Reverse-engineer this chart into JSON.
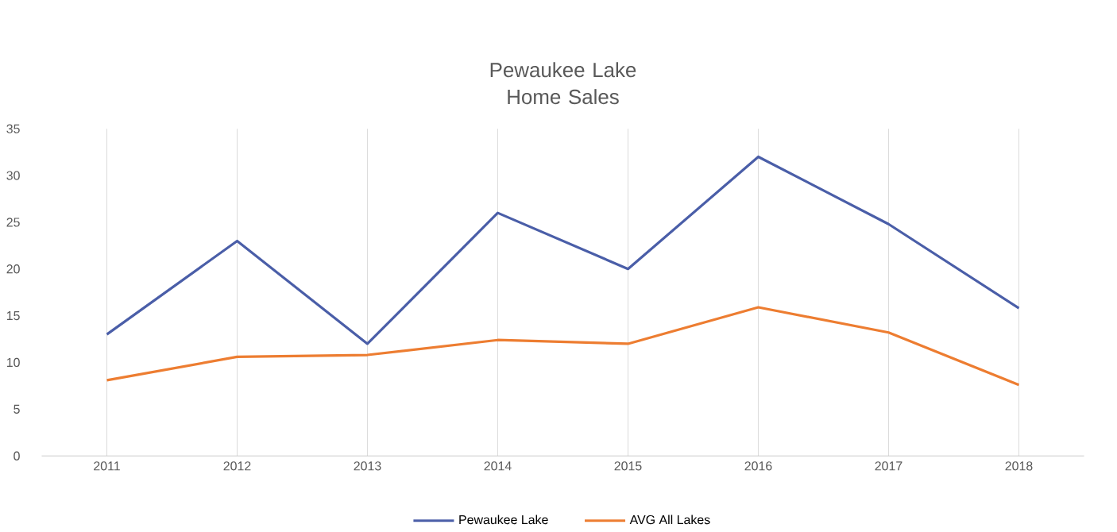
{
  "chart_data": {
    "type": "line",
    "title": "Pewaukee Lake Home Sales",
    "categories": [
      "2011",
      "2012",
      "2013",
      "2014",
      "2015",
      "2016",
      "2017",
      "2018"
    ],
    "series": [
      {
        "name": "Pewaukee Lake",
        "color": "#4a5ea8",
        "values": [
          13,
          23,
          12,
          26,
          20,
          32,
          24.8,
          15.8
        ]
      },
      {
        "name": "AVG All Lakes",
        "color": "#ed7d31",
        "values": [
          8.1,
          10.6,
          10.8,
          12.4,
          12,
          15.9,
          13.2,
          7.6
        ]
      }
    ],
    "ylim": [
      0,
      35
    ],
    "yticks": [
      0,
      5,
      10,
      15,
      20,
      25,
      30,
      35
    ],
    "grid": "x",
    "legend": "bottom",
    "line_style": "solid"
  }
}
